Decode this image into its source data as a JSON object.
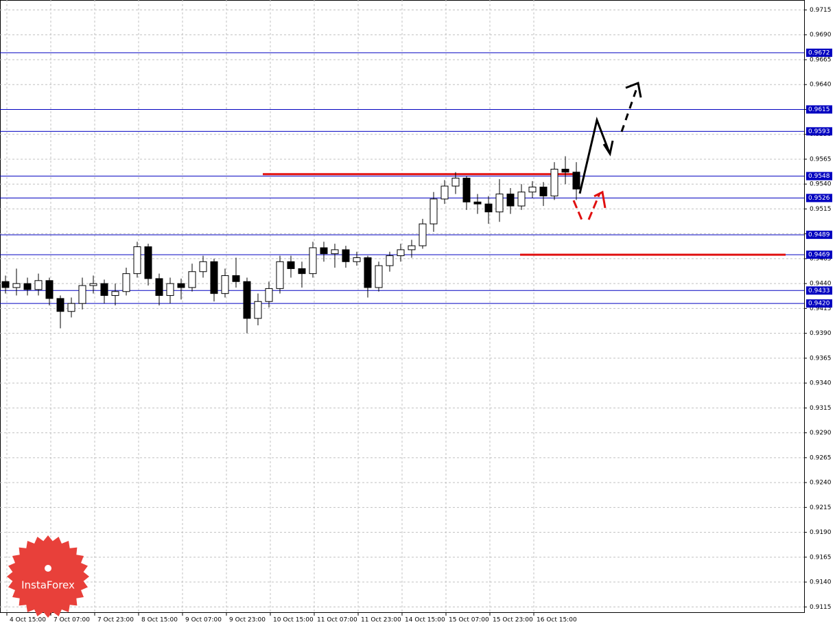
{
  "chart_data": {
    "type": "candlestick",
    "categories": [
      "4 Oct 15:00",
      null,
      null,
      null,
      "7 Oct 07:00",
      null,
      null,
      null,
      "7 Oct 23:00",
      null,
      null,
      null,
      "8 Oct 15:00",
      null,
      null,
      null,
      "9 Oct 07:00",
      null,
      null,
      null,
      "9 Oct 23:00",
      null,
      null,
      null,
      "10 Oct 15:00",
      null,
      null,
      null,
      "11 Oct 07:00",
      null,
      null,
      null,
      "11 Oct 23:00",
      null,
      null,
      null,
      "14 Oct 15:00",
      null,
      null,
      null,
      "15 Oct 07:00",
      null,
      null,
      null,
      "15 Oct 23:00",
      null,
      null,
      null,
      "16 Oct 15:00",
      null,
      null,
      null,
      null
    ],
    "open": [
      0.9442,
      0.9436,
      0.944,
      0.9434,
      0.9443,
      0.9425,
      0.9412,
      0.942,
      0.9438,
      0.944,
      0.9428,
      0.9432,
      0.945,
      0.9477,
      0.9445,
      0.9428,
      0.944,
      0.9436,
      0.9452,
      0.9462,
      0.943,
      0.9448,
      0.9442,
      0.9405,
      0.9422,
      0.9435,
      0.9462,
      0.9455,
      0.945,
      0.9476,
      0.947,
      0.9474,
      0.9462,
      0.9466,
      0.9436,
      0.9458,
      0.9468,
      0.9474,
      0.9478,
      0.95,
      0.9525,
      0.9538,
      0.9546,
      0.9522,
      0.952,
      0.9512,
      0.953,
      0.9518,
      0.9532,
      0.9537,
      0.9528,
      0.9555,
      0.9552
    ],
    "high": [
      0.9448,
      0.9455,
      0.9446,
      0.945,
      0.9446,
      0.9428,
      0.9426,
      0.9446,
      0.9448,
      0.9444,
      0.944,
      0.9456,
      0.9482,
      0.948,
      0.945,
      0.9446,
      0.9445,
      0.946,
      0.9468,
      0.9465,
      0.9455,
      0.9466,
      0.9446,
      0.943,
      0.9442,
      0.9468,
      0.9468,
      0.9462,
      0.9482,
      0.9482,
      0.948,
      0.9478,
      0.9472,
      0.9468,
      0.9462,
      0.9472,
      0.948,
      0.9484,
      0.9505,
      0.9532,
      0.9544,
      0.9552,
      0.9548,
      0.953,
      0.9528,
      0.9545,
      0.9536,
      0.954,
      0.9543,
      0.9542,
      0.9562,
      0.9568,
      0.9562
    ],
    "low": [
      0.943,
      0.9428,
      0.9428,
      0.9428,
      0.9418,
      0.9395,
      0.9406,
      0.9414,
      0.943,
      0.942,
      0.9418,
      0.9428,
      0.9446,
      0.9438,
      0.9418,
      0.942,
      0.9424,
      0.9432,
      0.9446,
      0.9422,
      0.9426,
      0.9436,
      0.939,
      0.9398,
      0.9416,
      0.943,
      0.9446,
      0.9436,
      0.9446,
      0.9462,
      0.9456,
      0.9456,
      0.9458,
      0.9426,
      0.9432,
      0.9452,
      0.9462,
      0.9466,
      0.9475,
      0.9492,
      0.952,
      0.953,
      0.9514,
      0.951,
      0.95,
      0.9502,
      0.951,
      0.9514,
      0.9526,
      0.9518,
      0.9524,
      0.954,
      0.9524
    ],
    "close": [
      0.9436,
      0.944,
      0.9434,
      0.9443,
      0.9425,
      0.9412,
      0.942,
      0.9438,
      0.944,
      0.9428,
      0.9432,
      0.945,
      0.9477,
      0.9445,
      0.9428,
      0.944,
      0.9436,
      0.9452,
      0.9462,
      0.943,
      0.9448,
      0.9442,
      0.9405,
      0.9422,
      0.9435,
      0.9462,
      0.9455,
      0.945,
      0.9476,
      0.947,
      0.9474,
      0.9462,
      0.9466,
      0.9436,
      0.9458,
      0.9468,
      0.9474,
      0.9478,
      0.95,
      0.9525,
      0.9538,
      0.9546,
      0.9522,
      0.952,
      0.9512,
      0.953,
      0.9518,
      0.9532,
      0.9537,
      0.9528,
      0.9555,
      0.9552,
      0.9535
    ],
    "ylim": [
      0.9109,
      0.9725
    ],
    "yticks": [
      0.9715,
      {
        "value": 0.969,
        "label": "0.9690"
      },
      0.9665,
      {
        "value": 0.964,
        "label": "0.9640"
      },
      0.9615,
      {
        "value": 0.959,
        "label": "0.9590"
      },
      0.9565,
      {
        "value": 0.954,
        "label": "0.9540"
      },
      0.9515,
      {
        "value": 0.949,
        "label": "0.9490"
      },
      0.9465,
      {
        "value": 0.944,
        "label": "0.9440"
      },
      0.9415,
      {
        "value": 0.939,
        "label": "0.9390"
      },
      0.9365,
      {
        "value": 0.934,
        "label": "0.9340"
      },
      0.9315,
      {
        "value": 0.929,
        "label": "0.9290"
      },
      0.9265,
      {
        "value": 0.924,
        "label": "0.9240"
      },
      0.9215,
      {
        "value": 0.919,
        "label": "0.9190"
      },
      0.9165,
      {
        "value": 0.914,
        "label": "0.9140"
      },
      0.9115
    ],
    "grid": true,
    "levels": [
      0.9672,
      0.9615,
      0.9593,
      0.9548,
      0.9526,
      0.9489,
      0.9469,
      0.9433,
      {
        "value": 0.942,
        "label": "0.9420"
      }
    ],
    "level_color": "#0000c0",
    "red_lines": [
      0.955,
      0.9469
    ],
    "red_color": "#e01010"
  },
  "logo": "InstaForex"
}
